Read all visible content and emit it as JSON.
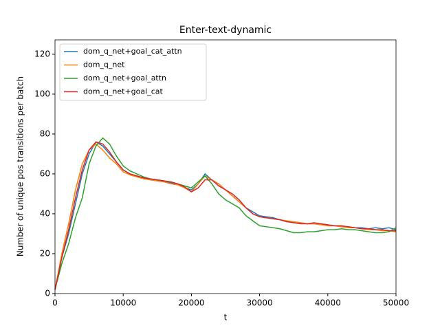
{
  "chart_data": {
    "type": "line",
    "title": "Enter-text-dynamic",
    "x_label": "t",
    "y_label": "Number of unique pos transitions per batch",
    "x": [
      0,
      1000,
      2000,
      3000,
      4000,
      5000,
      6000,
      7000,
      8000,
      9000,
      10000,
      11000,
      12000,
      13000,
      14000,
      15000,
      16000,
      17000,
      18000,
      19000,
      20000,
      21000,
      22000,
      23000,
      24000,
      25000,
      26000,
      27000,
      28000,
      29000,
      30000,
      31000,
      32000,
      33000,
      34000,
      35000,
      36000,
      37000,
      38000,
      39000,
      40000,
      41000,
      42000,
      43000,
      44000,
      45000,
      46000,
      47000,
      48000,
      49000,
      50000
    ],
    "series": [
      {
        "name": "dom_q_net+goal_cat_attn",
        "color": "#1f77b4",
        "values": [
          2,
          18,
          30,
          45,
          60,
          70,
          76,
          74,
          70,
          66,
          62,
          60,
          59,
          58,
          57,
          56.5,
          56,
          55.5,
          55,
          53,
          52,
          55,
          60,
          57,
          55,
          52,
          49,
          46,
          43,
          41,
          39,
          38.5,
          38,
          37,
          36,
          36,
          35.5,
          35,
          35,
          34.5,
          34,
          34,
          33.5,
          33.5,
          33,
          33,
          32.5,
          33,
          32.5,
          33,
          32
        ]
      },
      {
        "name": "dom_q_net",
        "color": "#ff7f0e",
        "values": [
          2,
          20,
          35,
          52,
          65,
          72,
          75,
          72,
          68,
          65,
          61,
          59.5,
          58.5,
          57.5,
          57,
          56.5,
          56,
          55,
          54.5,
          53,
          51,
          55,
          59,
          57,
          55,
          52,
          49,
          46,
          43,
          40,
          38.5,
          38,
          37.5,
          37,
          36.5,
          36,
          35.5,
          35,
          35,
          34.5,
          34,
          34,
          33.5,
          33,
          33,
          32.5,
          32,
          32,
          31.5,
          31.5,
          31
        ]
      },
      {
        "name": "dom_q_net+goal_attn",
        "color": "#2ca02c",
        "values": [
          2,
          15,
          25,
          38,
          48,
          65,
          74,
          78,
          75,
          69,
          64,
          61.5,
          60,
          58.5,
          57.5,
          57,
          56.5,
          56,
          55,
          54,
          53,
          56,
          59,
          55,
          50,
          47,
          45,
          43,
          39,
          36.5,
          34,
          33.5,
          33,
          32.5,
          31.5,
          30.5,
          30.5,
          31,
          31,
          31.5,
          32,
          32,
          32.5,
          32,
          32,
          31.5,
          31,
          30.5,
          30.5,
          31,
          33
        ]
      },
      {
        "name": "dom_q_net+goal_cat",
        "color": "#d62728",
        "values": [
          2,
          18,
          32,
          48,
          62,
          72,
          76,
          75,
          71,
          66,
          62,
          60,
          59,
          58,
          57.5,
          57,
          56.5,
          56,
          55,
          53.5,
          51,
          53,
          57,
          57,
          54,
          52,
          50,
          47,
          43,
          40,
          38.5,
          38,
          37.5,
          37,
          36,
          35.5,
          35,
          35,
          35.5,
          35,
          34.5,
          34,
          34,
          33.5,
          33,
          32.5,
          32.5,
          32,
          32,
          31.5,
          31.5
        ]
      }
    ],
    "xlim": [
      0,
      50000
    ],
    "ylim": [
      0,
      127.2
    ],
    "xticks": [
      0,
      10000,
      20000,
      30000,
      40000,
      50000
    ],
    "yticks": [
      0,
      20,
      40,
      60,
      80,
      100,
      120
    ],
    "legend": "upper left"
  }
}
